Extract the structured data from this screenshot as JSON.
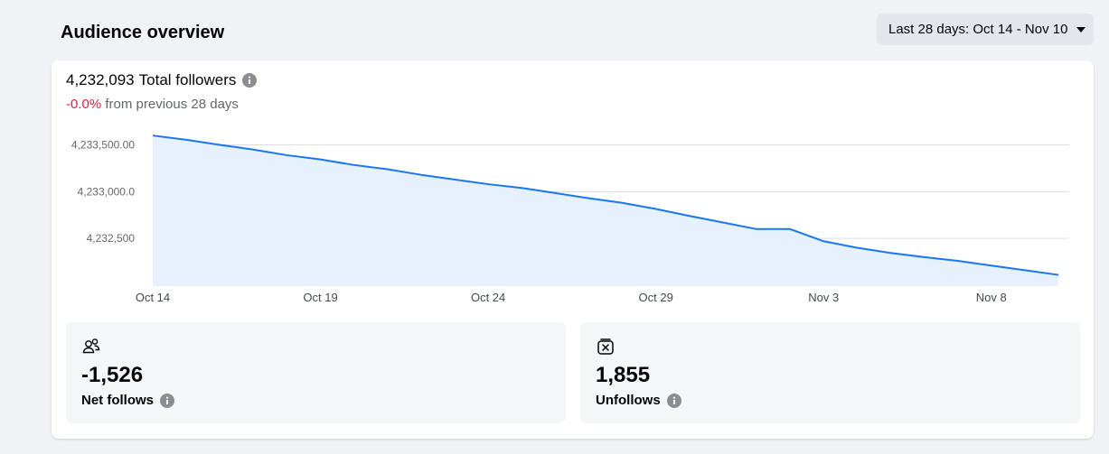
{
  "header": {
    "title": "Audience overview",
    "date_range_label": "Last 28 days: Oct 14 - Nov 10"
  },
  "summary": {
    "total_value": "4,232,093",
    "total_label": "Total followers",
    "change_value": "-0.0%",
    "change_suffix": "from previous 28 days"
  },
  "chart_data": {
    "type": "area",
    "title": "",
    "xlabel": "",
    "ylabel": "",
    "x_ticks": [
      "Oct 14",
      "Oct 19",
      "Oct 24",
      "Oct 29",
      "Nov 3",
      "Nov 8"
    ],
    "y_ticks": [
      {
        "value": 4233500,
        "label": "4,233,500.00"
      },
      {
        "value": 4233000,
        "label": "4,233,000.0"
      },
      {
        "value": 4232500,
        "label": "4,232,500"
      }
    ],
    "ylim": [
      4231990,
      4233650
    ],
    "grid": true,
    "line_color": "#1877f2",
    "fill_color": "#e7f0fd",
    "x": [
      "Oct 14",
      "Oct 15",
      "Oct 16",
      "Oct 17",
      "Oct 18",
      "Oct 19",
      "Oct 20",
      "Oct 21",
      "Oct 22",
      "Oct 23",
      "Oct 24",
      "Oct 25",
      "Oct 26",
      "Oct 27",
      "Oct 28",
      "Oct 29",
      "Oct 30",
      "Oct 31",
      "Nov 1",
      "Nov 2",
      "Nov 3",
      "Nov 4",
      "Nov 5",
      "Nov 6",
      "Nov 7",
      "Nov 8",
      "Nov 9",
      "Nov 10"
    ],
    "series": [
      {
        "values": [
          4233600,
          4233555,
          4233500,
          4233450,
          4233390,
          4233345,
          4233285,
          4233240,
          4233180,
          4233130,
          4233080,
          4233040,
          4232985,
          4232930,
          4232880,
          4232815,
          4232740,
          4232670,
          4232600,
          4232600,
          4232470,
          4232400,
          4232345,
          4232300,
          4232260,
          4232210,
          4232160,
          4232110
        ]
      }
    ]
  },
  "metrics": [
    {
      "icon": "people-icon",
      "value": "-1,526",
      "label": "Net follows"
    },
    {
      "icon": "unfollow-icon",
      "value": "1,855",
      "label": "Unfollows"
    }
  ],
  "colors": {
    "negative": "#e41e3f",
    "line": "#1877f2",
    "info_icon": "#8a8d91"
  }
}
